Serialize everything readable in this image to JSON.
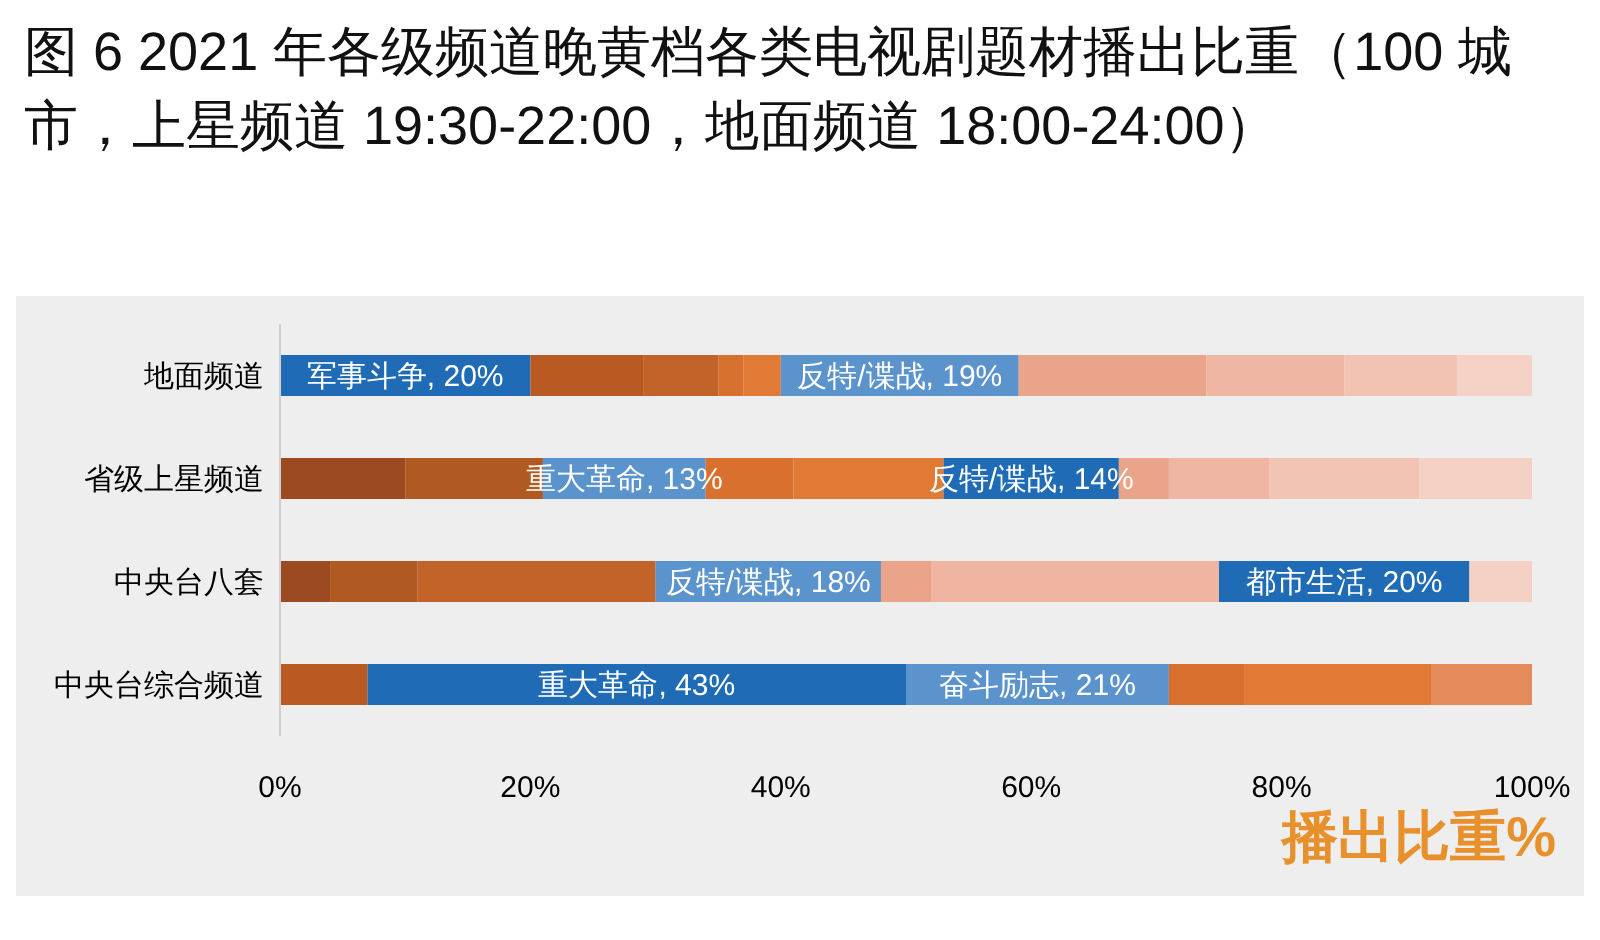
{
  "chart_data": {
    "type": "bar",
    "orientation": "horizontal",
    "stacked": true,
    "title": "图 6 2021 年各级频道晚黄档各类电视剧题材播出比重（100 城市，上星频道 19:30-22:00，地面频道 18:00-24:00）",
    "xlabel": "播出比重%",
    "categories": [
      "地面频道",
      "省级上星频道",
      "中央台八套",
      "中央台综合频道"
    ],
    "series": [
      {
        "values": [
          20,
          10,
          4,
          7
        ],
        "colors": [
          "#1f6bb5",
          "#9c4a22",
          "#9c4a22",
          "#b85a22"
        ],
        "value_labels": [
          "军事斗争, 20%",
          null,
          null,
          null
        ]
      },
      {
        "values": [
          9,
          11,
          7,
          43
        ],
        "colors": [
          "#b85a22",
          "#b05a22",
          "#b05a22",
          "#1f6bb5"
        ],
        "value_labels": [
          null,
          null,
          null,
          "重大革命, 43%"
        ]
      },
      {
        "values": [
          6,
          13,
          19,
          21
        ],
        "colors": [
          "#c2642a",
          "#5b93cc",
          "#c2642a",
          "#5b93cc"
        ],
        "value_labels": [
          null,
          "重大革命, 13%",
          null,
          "奋斗励志, 21%"
        ]
      },
      {
        "values": [
          2,
          7,
          18,
          6
        ],
        "colors": [
          "#d6702e",
          "#d9702e",
          "#5b93cc",
          "#d86f2e"
        ],
        "value_labels": [
          null,
          null,
          "反特/谍战, 18%",
          null
        ]
      },
      {
        "values": [
          3,
          12,
          4,
          15
        ],
        "colors": [
          "#e07a35",
          "#e07a35",
          "#e9a48a",
          "#e07a35"
        ],
        "value_labels": [
          null,
          null,
          null,
          null
        ]
      },
      {
        "values": [
          19,
          14,
          23,
          8
        ],
        "colors": [
          "#5b93cc",
          "#1f6bb5",
          "#efb5a0",
          "#e58a5a"
        ],
        "value_labels": [
          "反特/谍战, 19%",
          "反特/谍战, 14%",
          null,
          null
        ]
      },
      {
        "values": [
          15,
          4,
          20,
          null
        ],
        "colors": [
          "#e9a48a",
          "#e9a48a",
          "#1f6bb5",
          "#e58a5a"
        ],
        "value_labels": [
          null,
          null,
          "都市生活, 20%",
          null
        ]
      },
      {
        "values": [
          11,
          8,
          5,
          null
        ],
        "colors": [
          "#efb7a3",
          "#efb7a3",
          "#f5d0c4",
          "#e58a5a"
        ],
        "value_labels": [
          null,
          null,
          null,
          null
        ]
      },
      {
        "values": [
          9,
          12,
          null,
          null
        ],
        "colors": [
          "#f2c2b2",
          "#f2c4b4",
          "#f5d0c4",
          "#e58a5a"
        ],
        "value_labels": [
          null,
          null,
          null,
          null
        ]
      },
      {
        "values": [
          6,
          9,
          null,
          null
        ],
        "colors": [
          "#f6d2c6",
          "#f5d0c4",
          "#f5d0c4",
          "#e58a5a"
        ],
        "value_labels": [
          null,
          null,
          null,
          null
        ]
      }
    ],
    "xlim": [
      0,
      100
    ],
    "xticks": [
      {
        "value": 0,
        "label": "0%"
      },
      {
        "value": 20,
        "label": "20%"
      },
      {
        "value": 40,
        "label": "40%"
      },
      {
        "value": 60,
        "label": "60%"
      },
      {
        "value": 80,
        "label": "80%"
      },
      {
        "value": 100,
        "label": "100%"
      }
    ],
    "grid": false,
    "legend": false
  }
}
